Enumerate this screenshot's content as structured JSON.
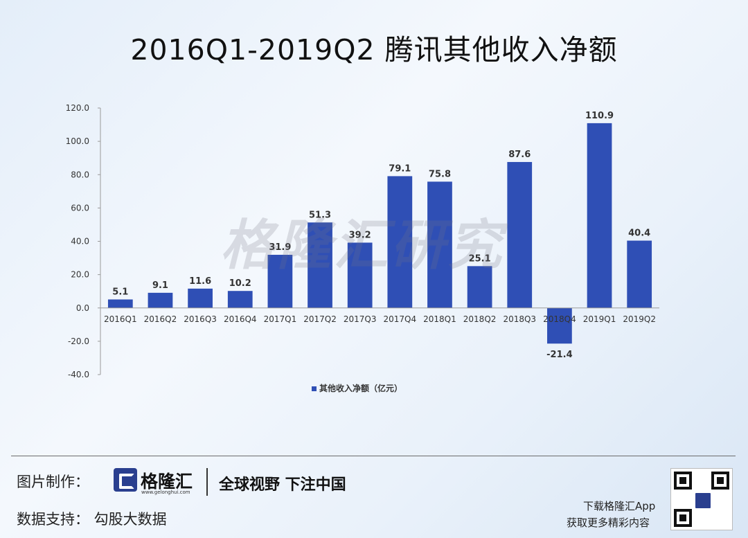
{
  "title": "2016Q1-2019Q2 腾讯其他收入净额",
  "watermark": "格隆汇研究",
  "chart_data": {
    "type": "bar",
    "categories": [
      "2016Q1",
      "2016Q2",
      "2016Q3",
      "2016Q4",
      "2017Q1",
      "2017Q2",
      "2017Q3",
      "2017Q4",
      "2018Q1",
      "2018Q2",
      "2018Q3",
      "2018Q4",
      "2019Q1",
      "2019Q2"
    ],
    "values": [
      5.1,
      9.1,
      11.6,
      10.2,
      31.9,
      51.3,
      39.2,
      79.1,
      75.8,
      25.1,
      87.6,
      -21.4,
      110.9,
      40.4
    ],
    "value_labels": [
      "5.1",
      "9.1",
      "11.6",
      "10.2",
      "31.9",
      "51.3",
      "39.2",
      "79.1",
      "75.8",
      "25.1",
      "87.6",
      "-21.4",
      "110.9",
      "40.4"
    ],
    "ylim": [
      -40,
      120
    ],
    "yticks": [
      "-40.0",
      "-20.0",
      "0.0",
      "20.0",
      "40.0",
      "60.0",
      "80.0",
      "100.0",
      "120.0"
    ],
    "ytick_values": [
      -40,
      -20,
      0,
      20,
      40,
      60,
      80,
      100,
      120
    ],
    "legend": "其他收入净额（亿元）",
    "legend_position": "bottom",
    "bar_color": "#2f4fb5",
    "grid": false
  },
  "footer": {
    "made_by": "图片制作：",
    "logo_name": "格隆汇",
    "logo_url": "www.gelonghui.com",
    "slogan": "全球视野 下注中国",
    "data_support": "数据支持： 勾股大数据",
    "download_line1": "下载格隆汇App",
    "download_line2": "获取更多精彩内容"
  }
}
